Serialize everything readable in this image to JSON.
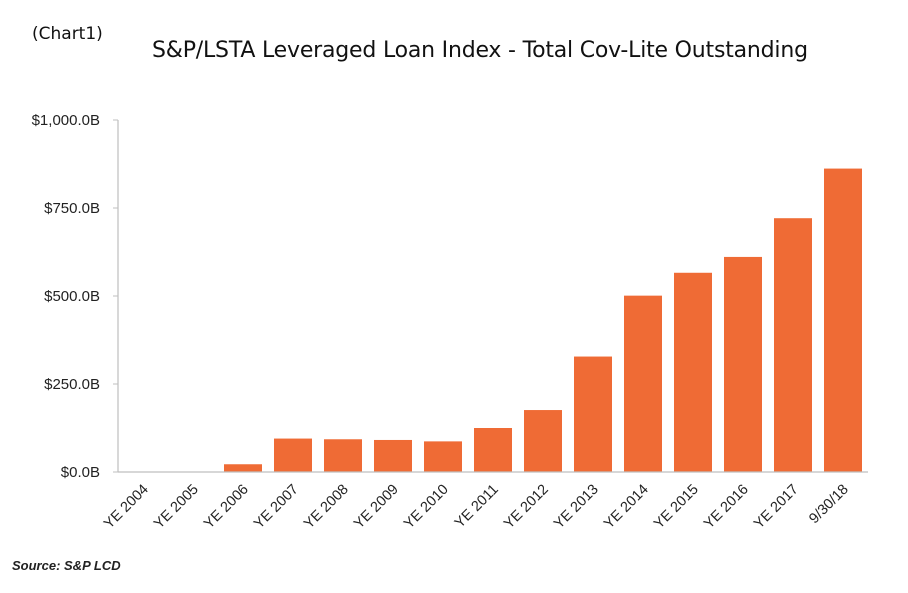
{
  "figure_label": "(Chart1)",
  "source": "Source: S&P LCD",
  "colors": {
    "bar": "#EF6B35",
    "axis": "#BFBFBF",
    "text": "#222222"
  },
  "chart_data": {
    "type": "bar",
    "title": "S&P/LSTA Leveraged Loan Index - Total Cov-Lite Outstanding",
    "xlabel": "",
    "ylabel": "",
    "categories": [
      "YE 2004",
      "YE 2005",
      "YE 2006",
      "YE 2007",
      "YE 2008",
      "YE 2009",
      "YE 2010",
      "YE 2011",
      "YE 2012",
      "YE 2013",
      "YE 2014",
      "YE 2015",
      "YE 2016",
      "YE 2017",
      "9/30/18"
    ],
    "values": [
      0,
      0,
      22,
      95,
      93,
      91,
      87,
      125,
      176,
      328,
      501,
      566,
      611,
      721,
      862
    ],
    "ylim": [
      0,
      1000
    ],
    "yticks": [
      0,
      250,
      500,
      750,
      1000
    ],
    "ytick_labels": [
      "$0.0B",
      "$250.0B",
      "$500.0B",
      "$750.0B",
      "$1,000.0B"
    ],
    "grid": false,
    "legend": "none"
  }
}
